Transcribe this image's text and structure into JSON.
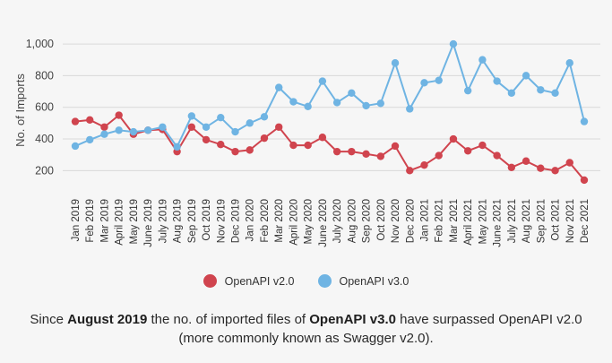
{
  "chart_data": {
    "type": "line",
    "title": "",
    "xlabel": "",
    "ylabel": "No. of Imports",
    "ylim": [
      100,
      1040
    ],
    "yticks": [
      200,
      400,
      600,
      800,
      1000
    ],
    "ytick_labels": [
      "200",
      "400",
      "600",
      "800",
      "1,000"
    ],
    "grid": true,
    "legend_position": "bottom-center",
    "categories": [
      "Jan 2019",
      "Feb 2019",
      "Mar 2019",
      "April 2019",
      "May 2019",
      "June 2019",
      "July 2019",
      "Aug 2019",
      "Sep 2019",
      "Oct 2019",
      "Nov 2019",
      "Dec 2019",
      "Jan 2020",
      "Feb 2020",
      "Mar 2020",
      "April 2020",
      "May 2020",
      "June 2020",
      "July 2020",
      "Aug 2020",
      "Sep 2020",
      "Oct 2020",
      "Nov 2020",
      "Dec 2020",
      "Jan 2021",
      "Feb 2021",
      "Mar 2021",
      "April 2021",
      "May 2021",
      "June 2021",
      "July 2021",
      "Aug 2021",
      "Sep 2021",
      "Oct 2021",
      "Nov 2021",
      "Dec 2021"
    ],
    "series": [
      {
        "name": "OpenAPI v2.0",
        "color": "#d0444e",
        "values": [
          510,
          520,
          475,
          550,
          430,
          455,
          460,
          320,
          475,
          395,
          365,
          320,
          330,
          405,
          475,
          360,
          360,
          410,
          320,
          320,
          305,
          290,
          355,
          200,
          235,
          295,
          400,
          325,
          360,
          295,
          220,
          260,
          215,
          200,
          250,
          140
        ]
      },
      {
        "name": "OpenAPI v3.0",
        "color": "#6fb4e3",
        "values": [
          355,
          395,
          430,
          455,
          445,
          455,
          475,
          350,
          545,
          475,
          535,
          445,
          500,
          540,
          725,
          635,
          605,
          765,
          630,
          690,
          610,
          625,
          880,
          590,
          755,
          770,
          1000,
          705,
          900,
          765,
          690,
          800,
          710,
          690,
          880,
          510
        ]
      }
    ]
  },
  "caption": {
    "part1": "Since ",
    "bold1": "August 2019",
    "part2": " the no. of imported files of ",
    "bold2": "OpenAPI v3.0",
    "part3": " have surpassed OpenAPI v2.0",
    "line2": "(more commonly known as Swagger v2.0)."
  }
}
